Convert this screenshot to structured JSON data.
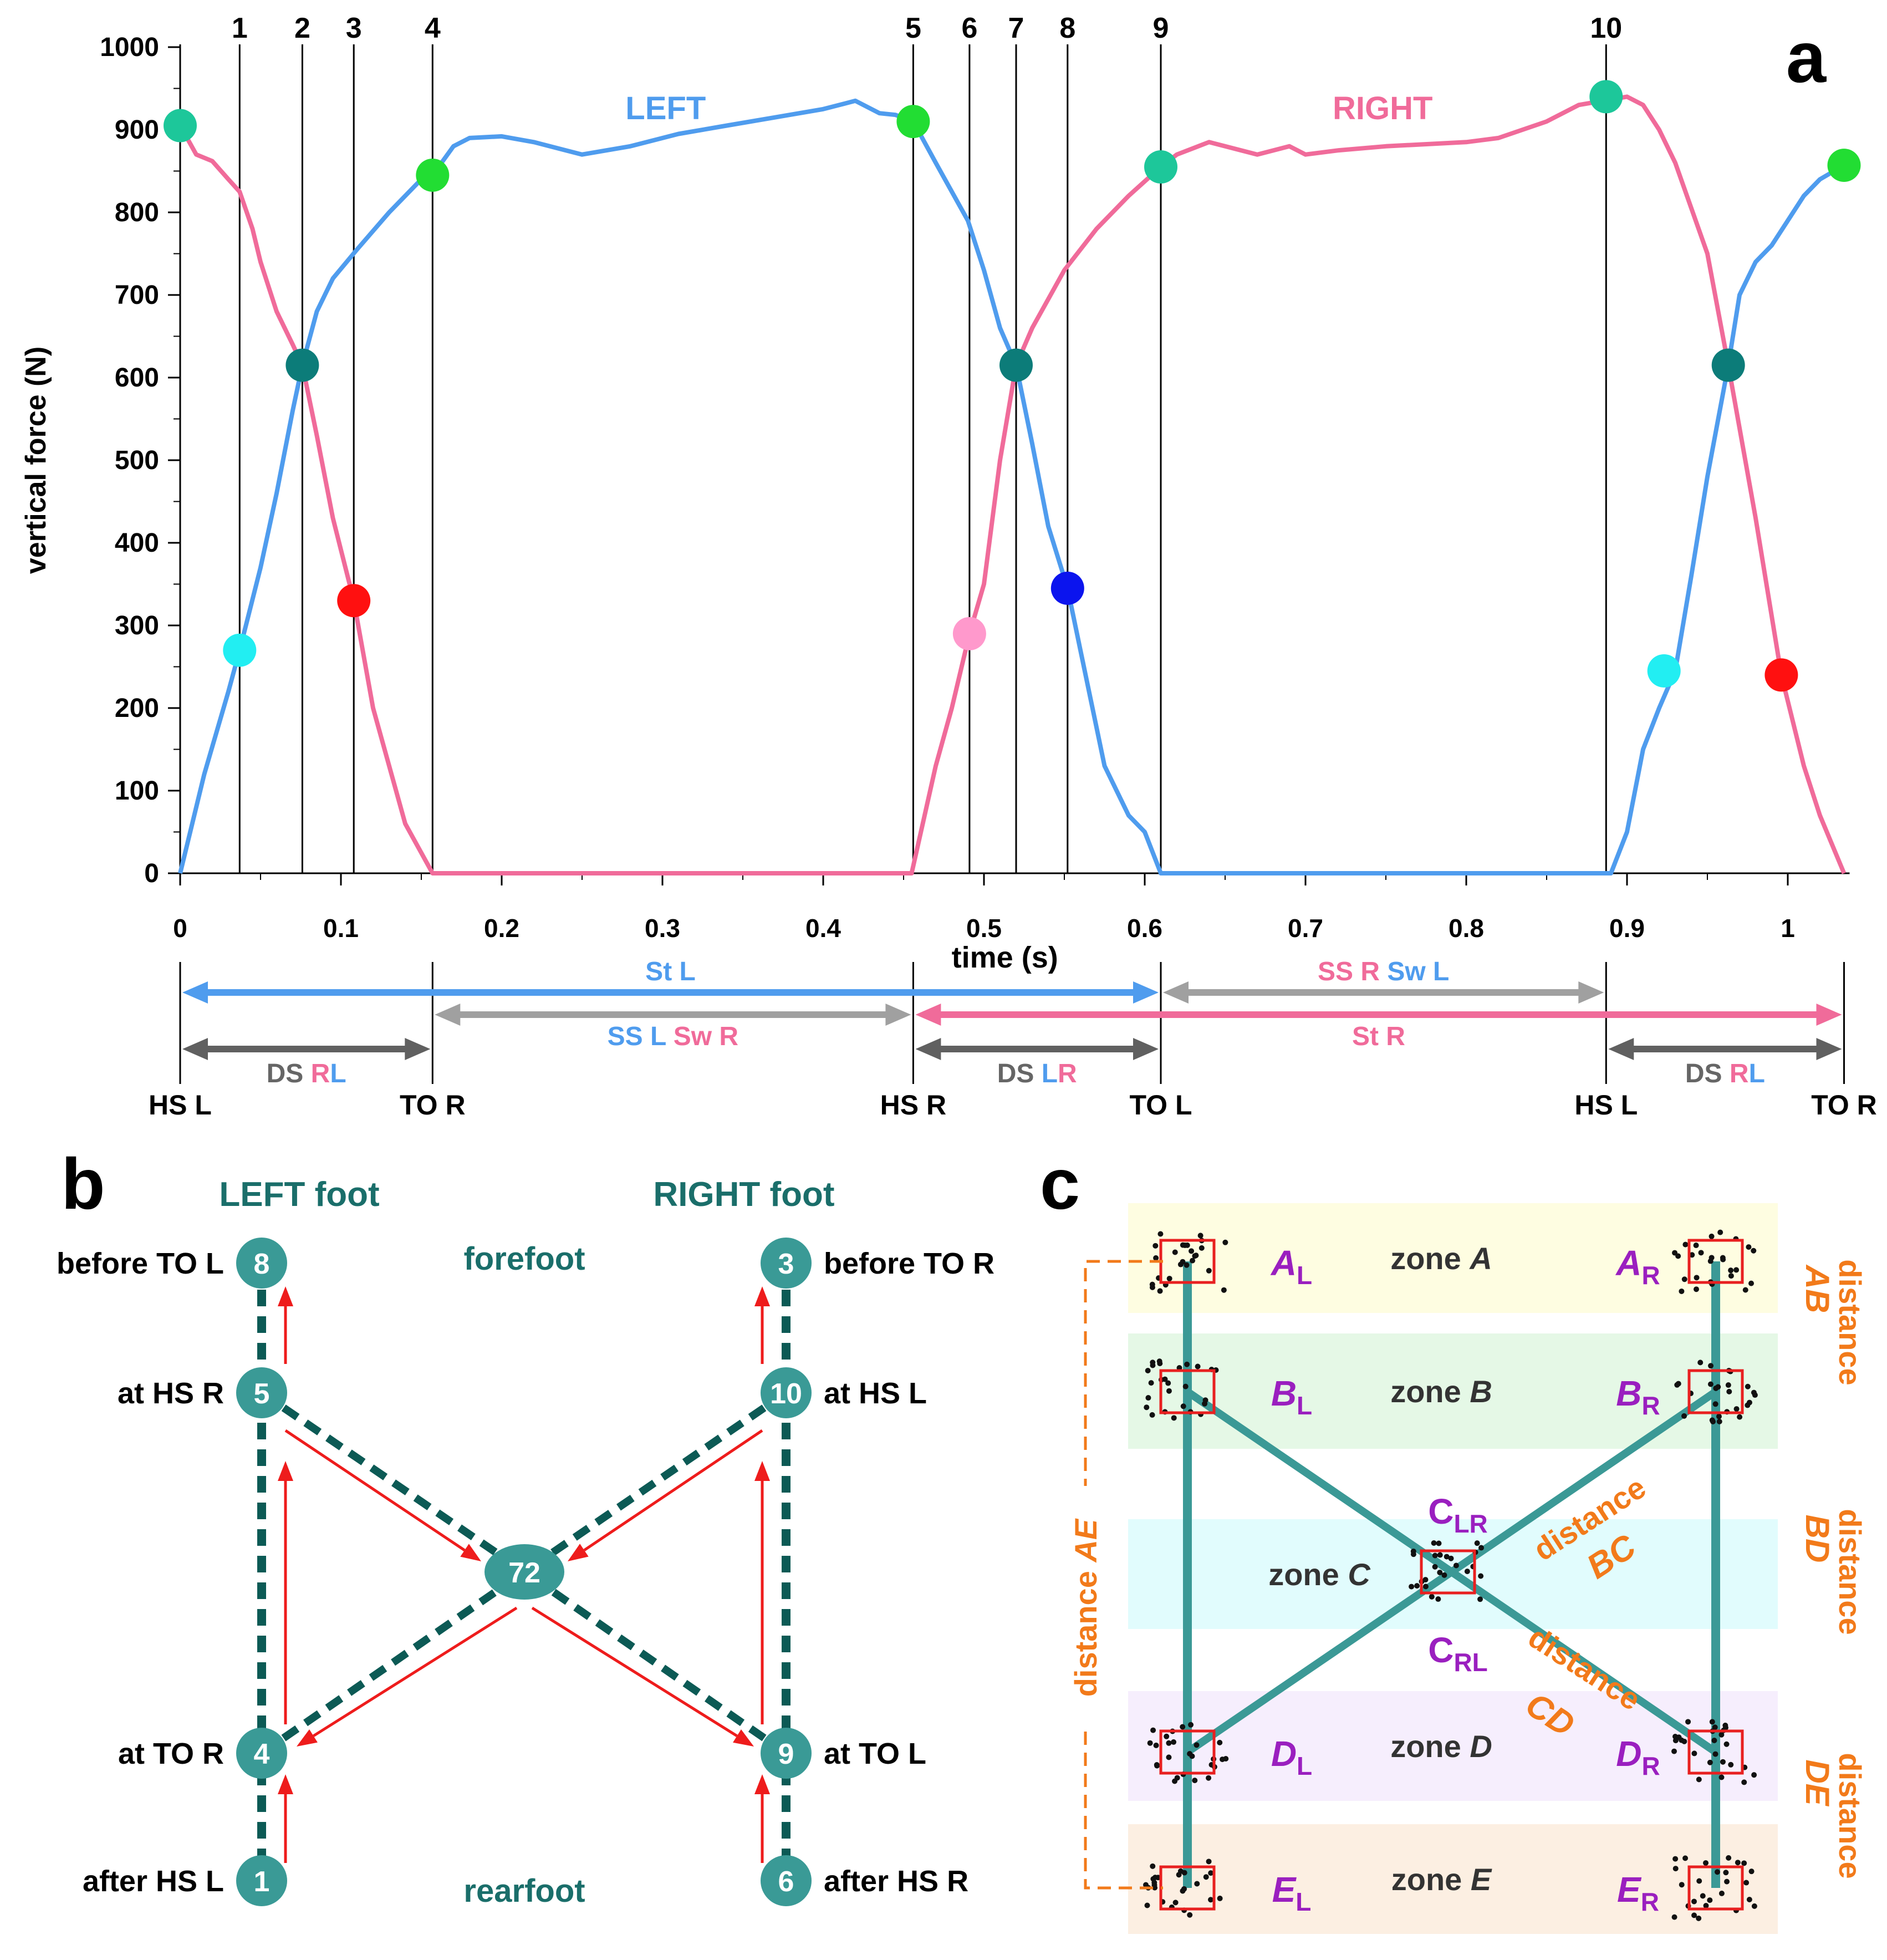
{
  "chart_data": [
    {
      "panel": "a",
      "type": "line",
      "ylabel": "vertical force (N)",
      "xlabel": "time (s)",
      "ylim": [
        0,
        1000
      ],
      "xlim": [
        0,
        1.035
      ],
      "yticks": [
        0,
        100,
        200,
        300,
        400,
        500,
        600,
        700,
        800,
        900,
        1000
      ],
      "xticks": [
        0,
        0.1,
        0.2,
        0.3,
        0.4,
        0.5,
        0.6,
        0.7,
        0.8,
        0.9,
        1
      ],
      "xtick_labels": [
        "0",
        "0.1",
        "0.2",
        "0.3",
        "0.4",
        "0.5",
        "0.6",
        "0.7",
        "0.8",
        "0.9",
        "1"
      ],
      "series": [
        {
          "name": "LEFT",
          "color": "#4f9cee",
          "x": [
            0,
            0.015,
            0.03,
            0.037,
            0.05,
            0.06,
            0.07,
            0.076,
            0.085,
            0.095,
            0.11,
            0.13,
            0.15,
            0.157,
            0.17,
            0.18,
            0.2,
            0.22,
            0.25,
            0.28,
            0.31,
            0.34,
            0.37,
            0.4,
            0.42,
            0.435,
            0.445,
            0.456,
            0.47,
            0.49,
            0.5,
            0.51,
            0.52,
            0.53,
            0.54,
            0.552,
            0.56,
            0.575,
            0.59,
            0.6,
            0.61,
            0.62,
            0.65,
            0.7,
            0.8,
            0.89,
            0.9,
            0.91,
            0.92,
            0.93,
            0.94,
            0.95,
            0.963,
            0.97,
            0.98,
            0.99,
            1.0,
            1.01,
            1.02,
            1.035
          ],
          "y": [
            0,
            120,
            220,
            270,
            370,
            460,
            560,
            615,
            680,
            720,
            755,
            800,
            840,
            845,
            880,
            890,
            892,
            885,
            870,
            880,
            895,
            905,
            915,
            925,
            935,
            920,
            918,
            910,
            860,
            790,
            730,
            660,
            615,
            520,
            420,
            345,
            270,
            130,
            70,
            50,
            0,
            0,
            0,
            0,
            0,
            0,
            50,
            150,
            200,
            245,
            360,
            480,
            615,
            700,
            740,
            760,
            790,
            820,
            840,
            857
          ]
        },
        {
          "name": "RIGHT",
          "color": "#f06b9a",
          "x": [
            0,
            0.01,
            0.02,
            0.03,
            0.037,
            0.045,
            0.05,
            0.06,
            0.07,
            0.076,
            0.085,
            0.095,
            0.108,
            0.12,
            0.13,
            0.14,
            0.157,
            0.2,
            0.3,
            0.4,
            0.455,
            0.47,
            0.48,
            0.491,
            0.5,
            0.51,
            0.52,
            0.53,
            0.55,
            0.57,
            0.59,
            0.61,
            0.62,
            0.64,
            0.65,
            0.67,
            0.69,
            0.7,
            0.72,
            0.75,
            0.8,
            0.82,
            0.85,
            0.87,
            0.885,
            0.9,
            0.91,
            0.92,
            0.93,
            0.95,
            0.963,
            0.98,
            0.996,
            1.01,
            1.02,
            1.035
          ],
          "y": [
            905,
            870,
            862,
            840,
            825,
            780,
            740,
            680,
            640,
            615,
            530,
            430,
            330,
            200,
            130,
            60,
            0,
            0,
            0,
            0,
            0,
            130,
            200,
            290,
            350,
            500,
            615,
            660,
            730,
            780,
            820,
            855,
            870,
            885,
            880,
            870,
            880,
            870,
            875,
            880,
            885,
            890,
            910,
            930,
            935,
            940,
            930,
            900,
            860,
            750,
            615,
            430,
            240,
            130,
            70,
            0
          ]
        }
      ],
      "series_labels": [
        "LEFT",
        "RIGHT"
      ],
      "vertical_lines": [
        {
          "label": "1",
          "x": 0.037
        },
        {
          "label": "2",
          "x": 0.076
        },
        {
          "label": "3",
          "x": 0.108
        },
        {
          "label": "4",
          "x": 0.157
        },
        {
          "label": "5",
          "x": 0.456
        },
        {
          "label": "6",
          "x": 0.491
        },
        {
          "label": "7",
          "x": 0.52
        },
        {
          "label": "8",
          "x": 0.552
        },
        {
          "label": "9",
          "x": 0.61
        },
        {
          "label": "10",
          "x": 0.887
        }
      ],
      "markers": [
        {
          "x": 0.0,
          "y": 905,
          "color": "#1dc79a"
        },
        {
          "x": 0.037,
          "y": 270,
          "color": "#22eef2"
        },
        {
          "x": 0.076,
          "y": 615,
          "color": "#0c7c79"
        },
        {
          "x": 0.108,
          "y": 330,
          "color": "#ff1010"
        },
        {
          "x": 0.157,
          "y": 845,
          "color": "#22dd33"
        },
        {
          "x": 0.456,
          "y": 910,
          "color": "#22dd33"
        },
        {
          "x": 0.491,
          "y": 290,
          "color": "#ff99cc"
        },
        {
          "x": 0.52,
          "y": 615,
          "color": "#0c7c79"
        },
        {
          "x": 0.552,
          "y": 345,
          "color": "#0b14ee"
        },
        {
          "x": 0.61,
          "y": 855,
          "color": "#1dc79a"
        },
        {
          "x": 0.887,
          "y": 940,
          "color": "#1dc79a"
        },
        {
          "x": 0.923,
          "y": 245,
          "color": "#22eef2"
        },
        {
          "x": 0.963,
          "y": 615,
          "color": "#0c7c79"
        },
        {
          "x": 0.996,
          "y": 240,
          "color": "#ff1010"
        },
        {
          "x": 1.035,
          "y": 857,
          "color": "#22dd33"
        }
      ],
      "events": [
        {
          "label": "HS L",
          "x": 0.0
        },
        {
          "label": "TO R",
          "x": 0.157
        },
        {
          "label": "HS R",
          "x": 0.456
        },
        {
          "label": "TO L",
          "x": 0.61
        },
        {
          "label": "HS L",
          "x": 0.887
        },
        {
          "label": "TO R",
          "x": 1.035
        }
      ],
      "phase_arrows": [
        {
          "from": 0.0,
          "to": 0.61,
          "row": 1,
          "color": "#4f9cee",
          "texts": [
            {
              "t": "St L",
              "c": "#4f9cee"
            }
          ]
        },
        {
          "from": 0.61,
          "to": 0.887,
          "row": 0,
          "color": "#a0a0a0",
          "texts": [
            {
              "t": "SS R",
              "c": "#f06b9a"
            },
            {
              "t": "Sw L",
              "c": "#4f9cee"
            }
          ]
        },
        {
          "from": 0.157,
          "to": 0.456,
          "row": 2,
          "color": "#a0a0a0",
          "texts": [
            {
              "t": "SS L",
              "c": "#4f9cee"
            },
            {
              "t": "Sw R",
              "c": "#f06b9a"
            }
          ]
        },
        {
          "from": 0.456,
          "to": 1.035,
          "row": 2,
          "color": "#f06b9a",
          "texts": [
            {
              "t": "St R",
              "c": "#f06b9a"
            }
          ]
        },
        {
          "from": 0.0,
          "to": 0.157,
          "row": 3,
          "color": "#606060",
          "texts": [
            {
              "t": "DS ",
              "c": "#666666"
            },
            {
              "t": "R",
              "c": "#f06b9a"
            },
            {
              "t": "L",
              "c": "#4f9cee"
            }
          ]
        },
        {
          "from": 0.456,
          "to": 0.61,
          "row": 3,
          "color": "#606060",
          "texts": [
            {
              "t": "DS ",
              "c": "#666666"
            },
            {
              "t": "L",
              "c": "#4f9cee"
            },
            {
              "t": "R",
              "c": "#f06b9a"
            }
          ]
        },
        {
          "from": 0.887,
          "to": 1.035,
          "row": 3,
          "color": "#606060",
          "texts": [
            {
              "t": "DS ",
              "c": "#666666"
            },
            {
              "t": "R",
              "c": "#f06b9a"
            },
            {
              "t": "L",
              "c": "#4f9cee"
            }
          ]
        }
      ]
    }
  ],
  "panel_labels": {
    "a": "a",
    "b": "b",
    "c": "c"
  },
  "panel_b": {
    "title_left": "LEFT foot",
    "title_right": "RIGHT foot",
    "forefoot": "forefoot",
    "rearfoot": "rearfoot",
    "center_node": "72",
    "nodes": [
      {
        "id": "8",
        "label": "before TO L",
        "side": "left",
        "row": 0
      },
      {
        "id": "5",
        "label": "at HS R",
        "side": "left",
        "row": 1
      },
      {
        "id": "4",
        "label": "at TO R",
        "side": "left",
        "row": 2
      },
      {
        "id": "1",
        "label": "after HS L",
        "side": "left",
        "row": 3
      },
      {
        "id": "3",
        "label": "before TO R",
        "side": "right",
        "row": 0
      },
      {
        "id": "10",
        "label": "at HS L",
        "side": "right",
        "row": 1
      },
      {
        "id": "9",
        "label": "at TO L",
        "side": "right",
        "row": 2
      },
      {
        "id": "6",
        "label": "after HS R",
        "side": "right",
        "row": 3
      }
    ],
    "colors": {
      "node": "#3a9a96",
      "path": "#0c5a55",
      "arrow": "#ee1c1c",
      "title": "#1a6e6a"
    }
  },
  "panel_c": {
    "zones": [
      {
        "name": "zone ",
        "letter": "A",
        "color": "#fefde1"
      },
      {
        "name": "zone ",
        "letter": "B",
        "color": "#e5f8e6"
      },
      {
        "name": "zone ",
        "letter": "C",
        "color": "#e1fcfd"
      },
      {
        "name": "zone ",
        "letter": "D",
        "color": "#f6eefd"
      },
      {
        "name": "zone ",
        "letter": "E",
        "color": "#fcefe2"
      }
    ],
    "point_labels": [
      {
        "main": "A",
        "sub": "L"
      },
      {
        "main": "A",
        "sub": "R"
      },
      {
        "main": "B",
        "sub": "L"
      },
      {
        "main": "B",
        "sub": "R"
      },
      {
        "main": "C",
        "sub": "LR"
      },
      {
        "main": "C",
        "sub": "RL"
      },
      {
        "main": "D",
        "sub": "L"
      },
      {
        "main": "D",
        "sub": "R"
      },
      {
        "main": "E",
        "sub": "L"
      },
      {
        "main": "E",
        "sub": "R"
      }
    ],
    "distances": {
      "word": "distance",
      "AB": "AB",
      "BC": "BC",
      "BD": "BD",
      "CD": "CD",
      "DE": "DE",
      "AE": "AE"
    },
    "colors": {
      "label": "#9a1fbf",
      "distance": "#f27a1a",
      "path": "#3b9996",
      "box": "#e82020"
    }
  }
}
